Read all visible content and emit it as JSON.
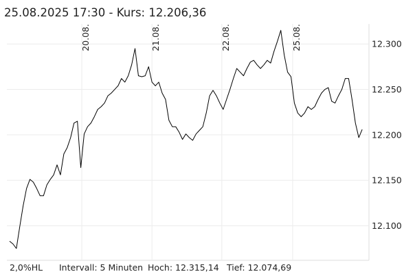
{
  "header": {
    "title": "25.08.2025 17:30  -  Kurs: 12.206,36"
  },
  "footer": {
    "range": "2,0%HL",
    "interval": "Intervall: 5 Minuten",
    "high": "Hoch: 12.315,14",
    "low": "Tief: 12.074,69"
  },
  "chart_data": {
    "type": "line",
    "color": "#000000",
    "grid": true,
    "x": [
      0,
      1,
      2,
      3,
      4,
      5,
      6,
      7,
      8,
      9,
      10,
      11,
      12,
      13,
      14,
      15,
      16,
      17,
      18,
      19,
      20,
      21,
      22,
      23,
      24,
      25,
      26,
      27,
      28,
      29,
      30,
      31,
      32,
      33,
      34,
      35,
      36,
      37,
      38,
      39,
      40,
      41,
      42,
      43,
      44,
      45,
      46,
      47,
      48,
      49,
      50,
      51,
      52,
      53,
      54,
      55,
      56,
      57,
      58,
      59,
      60,
      61,
      62,
      63,
      64,
      65,
      66,
      67,
      68,
      69,
      70,
      71,
      72,
      73,
      74,
      75,
      76,
      77,
      78,
      79,
      80,
      81,
      82,
      83,
      84,
      85,
      86,
      87,
      88,
      89,
      90,
      91,
      92,
      93,
      94,
      95,
      96,
      97,
      98,
      99,
      100,
      101,
      102,
      103,
      104
    ],
    "values": [
      12.083,
      12.08,
      12.075,
      12.099,
      12.122,
      12.141,
      12.151,
      12.148,
      12.141,
      12.133,
      12.133,
      12.145,
      12.151,
      12.156,
      12.167,
      12.156,
      12.179,
      12.186,
      12.197,
      12.213,
      12.215,
      12.164,
      12.201,
      12.209,
      12.213,
      12.22,
      12.228,
      12.231,
      12.235,
      12.243,
      12.246,
      12.25,
      12.254,
      12.262,
      12.258,
      12.265,
      12.277,
      12.295,
      12.265,
      12.264,
      12.265,
      12.275,
      12.258,
      12.254,
      12.258,
      12.246,
      12.239,
      12.216,
      12.209,
      12.209,
      12.203,
      12.195,
      12.201,
      12.197,
      12.194,
      12.201,
      12.205,
      12.209,
      12.224,
      12.243,
      12.249,
      12.243,
      12.235,
      12.228,
      12.239,
      12.25,
      12.262,
      12.273,
      12.269,
      12.265,
      12.273,
      12.28,
      12.282,
      12.277,
      12.273,
      12.277,
      12.282,
      12.279,
      12.292,
      12.303,
      12.315,
      12.288,
      12.269,
      12.264,
      12.235,
      12.224,
      12.22,
      12.224,
      12.231,
      12.228,
      12.231,
      12.239,
      12.246,
      12.25,
      12.252,
      12.237,
      12.235,
      12.243,
      12.25,
      12.262,
      12.262,
      12.239,
      12.213,
      12.197,
      12.206
    ],
    "xlim": [
      -0.8,
      106
    ],
    "xticks": [
      {
        "value": 21.3,
        "label": "20.08."
      },
      {
        "value": 42.0,
        "label": "21.08."
      },
      {
        "value": 62.6,
        "label": "22.08."
      },
      {
        "value": 83.5,
        "label": "25.08."
      }
    ],
    "ylim": [
      12.062,
      12.322
    ],
    "yticks": [
      {
        "value": 12.1,
        "label": "12.100"
      },
      {
        "value": 12.15,
        "label": "12.150"
      },
      {
        "value": 12.2,
        "label": "12.200"
      },
      {
        "value": 12.25,
        "label": "12.250"
      },
      {
        "value": 12.3,
        "label": "12.300"
      }
    ]
  }
}
